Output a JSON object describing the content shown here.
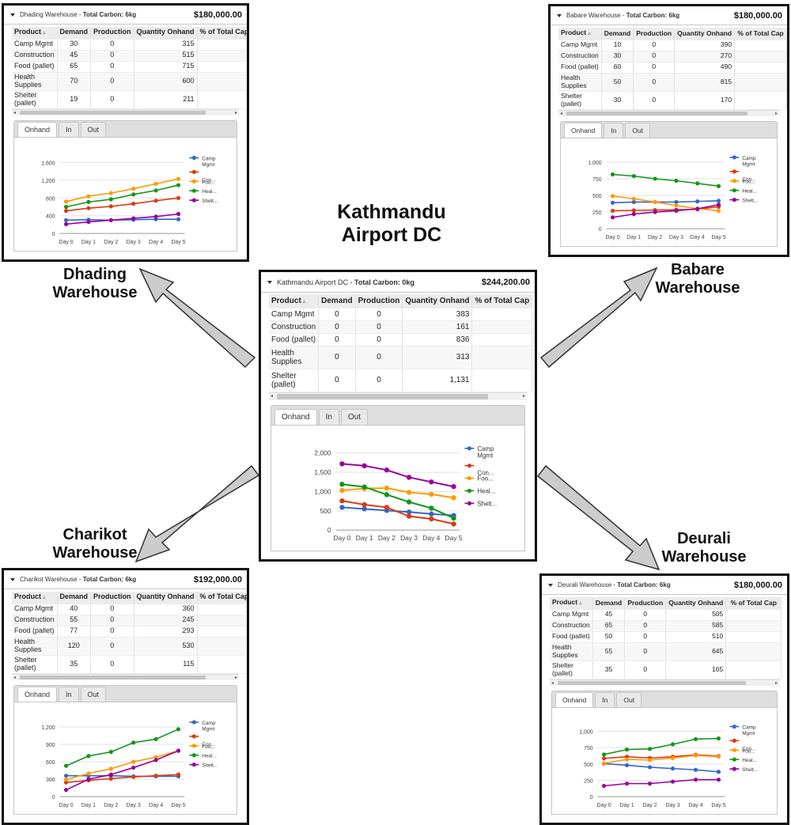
{
  "labels": {
    "kathmandu": [
      "Kathmandu",
      "Airport DC"
    ],
    "dhading": [
      "Dhading",
      "Warehouse"
    ],
    "babare": [
      "Babare",
      "Warehouse"
    ],
    "charikot": [
      "Charikot",
      "Warehouse"
    ],
    "deurali": [
      "Deurali",
      "Warehouse"
    ]
  },
  "columns": [
    "Product",
    "Demand",
    "Production",
    "Quantity Onhand",
    "% of Total Cap"
  ],
  "tabs": [
    "Onhand",
    "In",
    "Out"
  ],
  "legend": [
    {
      "label": "Camp Mgmt",
      "lines": [
        "Camp",
        "Mgmt"
      ],
      "color": "#3366cc"
    },
    {
      "label": "Con...",
      "lines": [
        "Con..."
      ],
      "color": "#dc3912"
    },
    {
      "label": "Foo...",
      "lines": [
        "Foo..."
      ],
      "color": "#ff9900"
    },
    {
      "label": "Heal...",
      "lines": [
        "Heal..."
      ],
      "color": "#109618"
    },
    {
      "label": "Shelt...",
      "lines": [
        "Shelt..."
      ],
      "color": "#990099"
    }
  ],
  "panels": {
    "kathmandu": {
      "title_name": "Kathmandu Airport DC",
      "title_suffix": "Total Carbon: 0kg",
      "cost": "$244,200.00",
      "rows": [
        {
          "product": "Camp Mgmt",
          "demand": "0",
          "production": "0",
          "onhand": "383",
          "pct": ""
        },
        {
          "product": "Construction",
          "demand": "0",
          "production": "0",
          "onhand": "161",
          "pct": ""
        },
        {
          "product": "Food (pallet)",
          "demand": "0",
          "production": "0",
          "onhand": "836",
          "pct": ""
        },
        {
          "product": "Health Supplies",
          "demand": "0",
          "production": "0",
          "onhand": "313",
          "pct": ""
        },
        {
          "product": "Shelter (pallet)",
          "demand": "0",
          "production": "0",
          "onhand": "1,131",
          "pct": ""
        }
      ]
    },
    "dhading": {
      "title_name": "Dhading Warehouse",
      "title_suffix": "Total Carbon: 6kg",
      "cost": "$180,000.00",
      "rows": [
        {
          "product": "Camp Mgmt",
          "demand": "30",
          "production": "0",
          "onhand": "315",
          "pct": ""
        },
        {
          "product": "Construction",
          "demand": "45",
          "production": "0",
          "onhand": "515",
          "pct": ""
        },
        {
          "product": "Food (pallet)",
          "demand": "65",
          "production": "0",
          "onhand": "715",
          "pct": ""
        },
        {
          "product": "Health Supplies",
          "demand": "70",
          "production": "0",
          "onhand": "600",
          "pct": ""
        },
        {
          "product": "Shelter (pallet)",
          "demand": "19",
          "production": "0",
          "onhand": "211",
          "pct": ""
        }
      ]
    },
    "babare": {
      "title_name": "Babare Warehouse",
      "title_suffix": "Total Carbon: 6kg",
      "cost": "$180,000.00",
      "rows": [
        {
          "product": "Camp Mgmt",
          "demand": "10",
          "production": "0",
          "onhand": "390",
          "pct": ""
        },
        {
          "product": "Construction",
          "demand": "30",
          "production": "0",
          "onhand": "270",
          "pct": ""
        },
        {
          "product": "Food (pallet)",
          "demand": "60",
          "production": "0",
          "onhand": "490",
          "pct": ""
        },
        {
          "product": "Health Supplies",
          "demand": "50",
          "production": "0",
          "onhand": "815",
          "pct": ""
        },
        {
          "product": "Shelter (pallet)",
          "demand": "30",
          "production": "0",
          "onhand": "170",
          "pct": ""
        }
      ]
    },
    "charikot": {
      "title_name": "Charikot Warehouse",
      "title_suffix": "Total Carbon: 6kg",
      "cost": "$192,000.00",
      "rows": [
        {
          "product": "Camp Mgmt",
          "demand": "40",
          "production": "0",
          "onhand": "360",
          "pct": ""
        },
        {
          "product": "Construction",
          "demand": "55",
          "production": "0",
          "onhand": "245",
          "pct": ""
        },
        {
          "product": "Food (pallet)",
          "demand": "77",
          "production": "0",
          "onhand": "293",
          "pct": ""
        },
        {
          "product": "Health Supplies",
          "demand": "120",
          "production": "0",
          "onhand": "530",
          "pct": ""
        },
        {
          "product": "Shelter (pallet)",
          "demand": "35",
          "production": "0",
          "onhand": "115",
          "pct": ""
        }
      ]
    },
    "deurali": {
      "title_name": "Deurali Warehouse",
      "title_suffix": "Total Carbon: 6kg",
      "cost": "$180,000.00",
      "rows": [
        {
          "product": "Camp Mgmt",
          "demand": "45",
          "production": "0",
          "onhand": "505",
          "pct": ""
        },
        {
          "product": "Construction",
          "demand": "65",
          "production": "0",
          "onhand": "585",
          "pct": ""
        },
        {
          "product": "Food (pallet)",
          "demand": "50",
          "production": "0",
          "onhand": "510",
          "pct": ""
        },
        {
          "product": "Health Supplies",
          "demand": "55",
          "production": "0",
          "onhand": "645",
          "pct": ""
        },
        {
          "product": "Shelter (pallet)",
          "demand": "35",
          "production": "0",
          "onhand": "165",
          "pct": ""
        }
      ]
    }
  },
  "chart_data": [
    {
      "panel": "kathmandu",
      "type": "line",
      "x": [
        "Day 0",
        "Day 1",
        "Day 2",
        "Day 3",
        "Day 4",
        "Day 5"
      ],
      "yticks": [
        "0",
        "500",
        "1,000",
        "1,500",
        "2,000"
      ],
      "ylim": [
        0,
        2000
      ],
      "series": [
        {
          "name": "Camp Mgmt",
          "values": [
            590,
            550,
            510,
            470,
            420,
            380
          ]
        },
        {
          "name": "Con...",
          "values": [
            760,
            660,
            590,
            360,
            290,
            160
          ]
        },
        {
          "name": "Foo...",
          "values": [
            1030,
            1080,
            1090,
            980,
            930,
            840
          ]
        },
        {
          "name": "Heal...",
          "values": [
            1190,
            1120,
            920,
            730,
            570,
            310
          ]
        },
        {
          "name": "Shelt...",
          "values": [
            1720,
            1670,
            1560,
            1370,
            1250,
            1130
          ]
        }
      ]
    },
    {
      "panel": "dhading",
      "type": "line",
      "x": [
        "Day 0",
        "Day 1",
        "Day 2",
        "Day 3",
        "Day 4",
        "Day 5"
      ],
      "yticks": [
        "0",
        "400",
        "800",
        "1,200",
        "1,600"
      ],
      "ylim": [
        0,
        1600
      ],
      "series": [
        {
          "name": "Camp Mgmt",
          "values": [
            300,
            310,
            300,
            310,
            320,
            320
          ]
        },
        {
          "name": "Con...",
          "values": [
            510,
            570,
            610,
            670,
            740,
            800
          ]
        },
        {
          "name": "Foo...",
          "values": [
            720,
            840,
            910,
            1010,
            1120,
            1230
          ]
        },
        {
          "name": "Heal...",
          "values": [
            600,
            710,
            770,
            880,
            970,
            1090
          ]
        },
        {
          "name": "Shelt...",
          "values": [
            210,
            260,
            300,
            340,
            380,
            440
          ]
        }
      ]
    },
    {
      "panel": "babare",
      "type": "line",
      "x": [
        "Day 0",
        "Day 1",
        "Day 2",
        "Day 3",
        "Day 4",
        "Day 5"
      ],
      "yticks": [
        "0",
        "250",
        "500",
        "750",
        "1,000"
      ],
      "ylim": [
        0,
        1000
      ],
      "series": [
        {
          "name": "Camp Mgmt",
          "values": [
            390,
            400,
            400,
            400,
            410,
            420
          ]
        },
        {
          "name": "Con...",
          "values": [
            270,
            275,
            280,
            285,
            290,
            330
          ]
        },
        {
          "name": "Foo...",
          "values": [
            490,
            450,
            400,
            350,
            300,
            270
          ]
        },
        {
          "name": "Heal...",
          "values": [
            815,
            790,
            750,
            720,
            680,
            640
          ]
        },
        {
          "name": "Shelt...",
          "values": [
            170,
            220,
            250,
            270,
            300,
            360
          ]
        }
      ]
    },
    {
      "panel": "charikot",
      "type": "line",
      "x": [
        "Day 0",
        "Day 1",
        "Day 2",
        "Day 3",
        "Day 4",
        "Day 5"
      ],
      "yticks": [
        "0",
        "300",
        "600",
        "900",
        "1,200"
      ],
      "ylim": [
        0,
        1200
      ],
      "series": [
        {
          "name": "Camp Mgmt",
          "values": [
            360,
            360,
            360,
            350,
            350,
            350
          ]
        },
        {
          "name": "Con...",
          "values": [
            245,
            280,
            310,
            340,
            360,
            380
          ]
        },
        {
          "name": "Foo...",
          "values": [
            293,
            400,
            480,
            600,
            680,
            790
          ]
        },
        {
          "name": "Heal...",
          "values": [
            530,
            700,
            770,
            930,
            990,
            1160
          ]
        },
        {
          "name": "Shelt...",
          "values": [
            115,
            300,
            380,
            500,
            630,
            790
          ]
        }
      ]
    },
    {
      "panel": "deurali",
      "type": "line",
      "x": [
        "Day 0",
        "Day 1",
        "Day 2",
        "Day 3",
        "Day 4",
        "Day 5"
      ],
      "yticks": [
        "0",
        "250",
        "500",
        "750",
        "1,000"
      ],
      "ylim": [
        0,
        1000
      ],
      "series": [
        {
          "name": "Camp Mgmt",
          "values": [
            505,
            480,
            450,
            430,
            410,
            380
          ]
        },
        {
          "name": "Con...",
          "values": [
            585,
            610,
            590,
            610,
            640,
            620
          ]
        },
        {
          "name": "Foo...",
          "values": [
            510,
            570,
            560,
            590,
            630,
            610
          ]
        },
        {
          "name": "Heal...",
          "values": [
            645,
            720,
            730,
            800,
            880,
            890
          ]
        },
        {
          "name": "Shelt...",
          "values": [
            165,
            200,
            200,
            230,
            260,
            260
          ]
        }
      ]
    }
  ]
}
